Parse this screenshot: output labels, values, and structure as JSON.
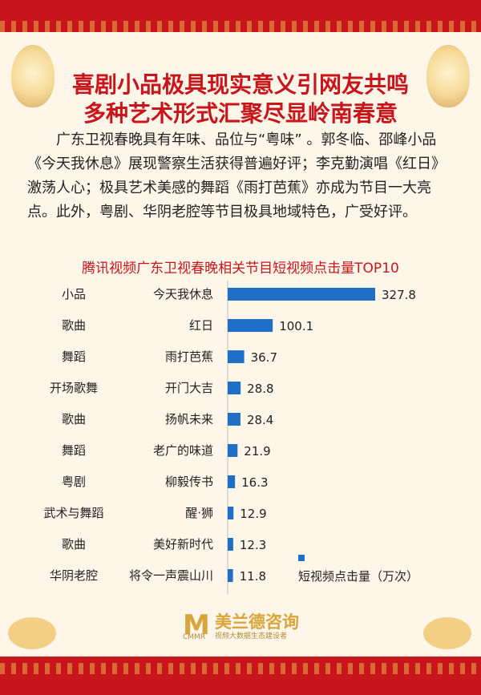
{
  "header": {
    "title_line1": "喜剧小品极具现实意义引网友共鸣",
    "title_line2": "多种艺术形式汇聚尽显岭南春意"
  },
  "intro_text": "广东卫视春晚具有年味、品位与“粤味” 。郭冬临、邵峰小品《今天我休息》展现警察生活获得普遍好评；李克勤演唱《红日》激荡人心；极具艺术美感的舞蹈《雨打芭蕉》亦成为节目一大亮点。此外，粤剧、华阴老腔等节目极具地域特色，广受好评。",
  "footer": {
    "logo_mark": "M",
    "logo_tag": "CMMR",
    "logo_name": "美兰德咨询",
    "logo_sub": "视频大数据生态建设者"
  },
  "colors": {
    "accent": "#c8141b",
    "bar": "#1f6fc6"
  },
  "chart_data": {
    "type": "bar",
    "orientation": "horizontal",
    "title": "腾讯视频广东卫视春晚相关节目短视频点击量TOP10",
    "categories": [
      "今天我休息",
      "红日",
      "雨打芭蕉",
      "开门大吉",
      "扬帆未来",
      "老广的味道",
      "柳毅传书",
      "醒·狮",
      "美好新时代",
      "将令一声震山川"
    ],
    "genres": [
      "小品",
      "歌曲",
      "舞蹈",
      "开场歌舞",
      "歌曲",
      "舞蹈",
      "粤剧",
      "武术与舞蹈",
      "歌曲",
      "华阴老腔"
    ],
    "series": [
      {
        "name": "短视频点击量（万次）",
        "values": [
          327.8,
          100.1,
          36.7,
          28.8,
          28.4,
          21.9,
          16.3,
          12.9,
          12.3,
          11.8
        ]
      }
    ],
    "legend_position": "bottom-right",
    "grid": false
  }
}
